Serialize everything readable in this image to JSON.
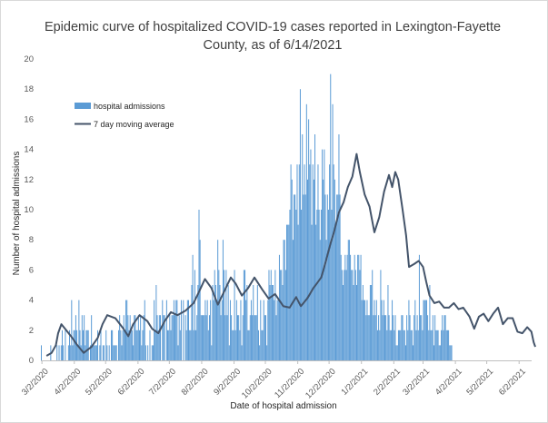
{
  "chart_data": {
    "type": "bar",
    "title": "Epidemic curve of hospitalized COVID-19 cases reported in Lexington-Fayette County, as of 6/14/2021",
    "xlabel": "Date of hospital admission",
    "ylabel": "Number of hospital admissions",
    "ylim": [
      0,
      20
    ],
    "yticks": [
      "0",
      "2",
      "4",
      "6",
      "8",
      "10",
      "12",
      "14",
      "16",
      "18",
      "20"
    ],
    "xticks": [
      "3/2/2020",
      "4/2/2020",
      "5/2/2020",
      "6/2/2020",
      "7/2/2020",
      "8/2/2020",
      "9/2/2020",
      "10/2/2020",
      "11/2/2020",
      "12/2/2020",
      "1/2/2021",
      "2/2/2021",
      "3/2/2021",
      "4/2/2021",
      "5/2/2021",
      "6/2/2021"
    ],
    "x_range": [
      "2020-03-01",
      "2021-06-14"
    ],
    "grid": false,
    "legend": "upper-left",
    "colors": {
      "bars": "#5b9bd5",
      "line": "#44546a"
    },
    "series": [
      {
        "name": "hospital admissions",
        "type": "bar",
        "start_date": "2020-03-01",
        "values": [
          1,
          0,
          0,
          0,
          0,
          0,
          0,
          0,
          0,
          1,
          0,
          0,
          0,
          0,
          0,
          1,
          0,
          1,
          0,
          1,
          2,
          1,
          0,
          2,
          0,
          0,
          1,
          2,
          1,
          4,
          1,
          2,
          2,
          3,
          2,
          1,
          4,
          2,
          1,
          3,
          2,
          3,
          1,
          2,
          2,
          2,
          0,
          1,
          3,
          1,
          1,
          1,
          1,
          1,
          2,
          0,
          1,
          2,
          0,
          1,
          1,
          0,
          2,
          1,
          0,
          1,
          0,
          2,
          2,
          1,
          1,
          1,
          1,
          0,
          2,
          3,
          2,
          1,
          2,
          3,
          2,
          4,
          4,
          3,
          2,
          3,
          2,
          2,
          1,
          3,
          3,
          2,
          2,
          3,
          2,
          3,
          1,
          2,
          3,
          4,
          1,
          0,
          1,
          0,
          2,
          0,
          1,
          1,
          4,
          2,
          5,
          3,
          2,
          3,
          3,
          0,
          4,
          3,
          3,
          0,
          4,
          2,
          2,
          3,
          2,
          3,
          3,
          4,
          3,
          4,
          4,
          1,
          3,
          2,
          4,
          0,
          4,
          0,
          3,
          2,
          4,
          4,
          2,
          2,
          5,
          7,
          2,
          6,
          2,
          3,
          5,
          10,
          8,
          3,
          3,
          3,
          3,
          4,
          3,
          4,
          2,
          3,
          4,
          1,
          5,
          4,
          6,
          5,
          4,
          8,
          6,
          5,
          3,
          4,
          8,
          6,
          3,
          6,
          3,
          5,
          1,
          4,
          3,
          2,
          2,
          6,
          2,
          4,
          3,
          3,
          2,
          4,
          1,
          3,
          6,
          6,
          4,
          5,
          2,
          2,
          3,
          4,
          3,
          5,
          3,
          3,
          3,
          5,
          2,
          1,
          4,
          2,
          2,
          4,
          3,
          3,
          1,
          4,
          6,
          5,
          6,
          5,
          5,
          4,
          6,
          3,
          4,
          4,
          7,
          6,
          6,
          5,
          8,
          8,
          6,
          9,
          9,
          9,
          10,
          13,
          12,
          8,
          11,
          11,
          10,
          13,
          9,
          13,
          18,
          10,
          15,
          11,
          13,
          11,
          17,
          12,
          16,
          13,
          14,
          9,
          13,
          12,
          15,
          9,
          10,
          13,
          10,
          8,
          10,
          14,
          12,
          14,
          11,
          8,
          11,
          10,
          13,
          19,
          10,
          17,
          13,
          12,
          9,
          11,
          11,
          15,
          11,
          7,
          6,
          5,
          6,
          7,
          6,
          7,
          8,
          8,
          7,
          6,
          6,
          5,
          7,
          6,
          5,
          7,
          7,
          6,
          7,
          4,
          5,
          4,
          4,
          3,
          4,
          3,
          3,
          5,
          5,
          6,
          3,
          4,
          3,
          4,
          2,
          3,
          2,
          6,
          4,
          3,
          4,
          3,
          3,
          2,
          5,
          3,
          2,
          2,
          4,
          3,
          2,
          3,
          1,
          1,
          2,
          2,
          2,
          3,
          3,
          2,
          2,
          1,
          3,
          2,
          4,
          3,
          2,
          2,
          1,
          3,
          4,
          2,
          3,
          2,
          7,
          3,
          3,
          2,
          4,
          4,
          4,
          4,
          3,
          2,
          5,
          2,
          2,
          3,
          1,
          3,
          2,
          2,
          2,
          1,
          1,
          2,
          3,
          2,
          3,
          3,
          2,
          2,
          2,
          1,
          1,
          1
        ]
      },
      {
        "name": "7 day moving average",
        "type": "line",
        "points": [
          [
            0.14,
            0.3
          ],
          [
            0.3,
            0.5
          ],
          [
            0.43,
            1
          ],
          [
            0.5,
            1.8
          ],
          [
            0.6,
            2.4
          ],
          [
            0.75,
            2
          ],
          [
            0.9,
            1.6
          ],
          [
            1.1,
            1
          ],
          [
            1.3,
            0.5
          ],
          [
            1.55,
            0.9
          ],
          [
            1.75,
            1.5
          ],
          [
            1.9,
            2.4
          ],
          [
            2.05,
            3
          ],
          [
            2.3,
            2.8
          ],
          [
            2.55,
            2.1
          ],
          [
            2.7,
            1.6
          ],
          [
            2.85,
            2.4
          ],
          [
            3.05,
            3
          ],
          [
            3.3,
            2.6
          ],
          [
            3.45,
            2.1
          ],
          [
            3.65,
            1.8
          ],
          [
            3.85,
            2.6
          ],
          [
            4.05,
            3.2
          ],
          [
            4.25,
            3
          ],
          [
            4.5,
            3.3
          ],
          [
            4.75,
            3.8
          ],
          [
            4.95,
            4.7
          ],
          [
            5.1,
            5.4
          ],
          [
            5.3,
            4.8
          ],
          [
            5.5,
            3.7
          ],
          [
            5.7,
            4.6
          ],
          [
            5.9,
            5.5
          ],
          [
            6.05,
            5.1
          ],
          [
            6.25,
            4.3
          ],
          [
            6.45,
            4.8
          ],
          [
            6.65,
            5.5
          ],
          [
            6.9,
            4.7
          ],
          [
            7.1,
            4.1
          ],
          [
            7.3,
            4.4
          ],
          [
            7.55,
            3.6
          ],
          [
            7.75,
            3.5
          ],
          [
            7.95,
            4.2
          ],
          [
            8.1,
            3.6
          ],
          [
            8.3,
            4.1
          ],
          [
            8.5,
            4.8
          ],
          [
            8.75,
            5.5
          ],
          [
            8.9,
            6.6
          ],
          [
            9.05,
            7.8
          ],
          [
            9.15,
            8.5
          ],
          [
            9.3,
            9.8
          ],
          [
            9.45,
            10.5
          ],
          [
            9.58,
            11.5
          ],
          [
            9.72,
            12.2
          ],
          [
            9.85,
            13.7
          ],
          [
            9.95,
            12.5
          ],
          [
            10.1,
            11
          ],
          [
            10.25,
            10.2
          ],
          [
            10.4,
            8.5
          ],
          [
            10.55,
            9.5
          ],
          [
            10.7,
            11.2
          ],
          [
            10.85,
            12.3
          ],
          [
            10.95,
            11.5
          ],
          [
            11.05,
            12.5
          ],
          [
            11.15,
            12
          ],
          [
            11.3,
            10
          ],
          [
            11.42,
            8.3
          ],
          [
            11.52,
            6.2
          ],
          [
            11.7,
            6.4
          ],
          [
            11.85,
            6.6
          ],
          [
            12.0,
            6.2
          ],
          [
            12.1,
            5.2
          ],
          [
            12.2,
            4.3
          ],
          [
            12.35,
            3.8
          ],
          [
            12.5,
            3.9
          ],
          [
            12.65,
            3.5
          ],
          [
            12.8,
            3.5
          ],
          [
            12.95,
            3.8
          ],
          [
            13.1,
            3.4
          ],
          [
            13.25,
            3.5
          ],
          [
            13.45,
            2.9
          ],
          [
            13.6,
            2.1
          ],
          [
            13.75,
            2.9
          ],
          [
            13.9,
            3.1
          ],
          [
            14.05,
            2.6
          ],
          [
            14.2,
            3.1
          ],
          [
            14.35,
            3.5
          ],
          [
            14.5,
            2.4
          ],
          [
            14.65,
            2.8
          ],
          [
            14.8,
            2.8
          ],
          [
            14.95,
            1.9
          ],
          [
            15.1,
            1.8
          ],
          [
            15.25,
            2.2
          ],
          [
            15.38,
            1.9
          ],
          [
            15.45,
            1.2
          ],
          [
            15.5,
            0.9
          ]
        ]
      }
    ]
  }
}
